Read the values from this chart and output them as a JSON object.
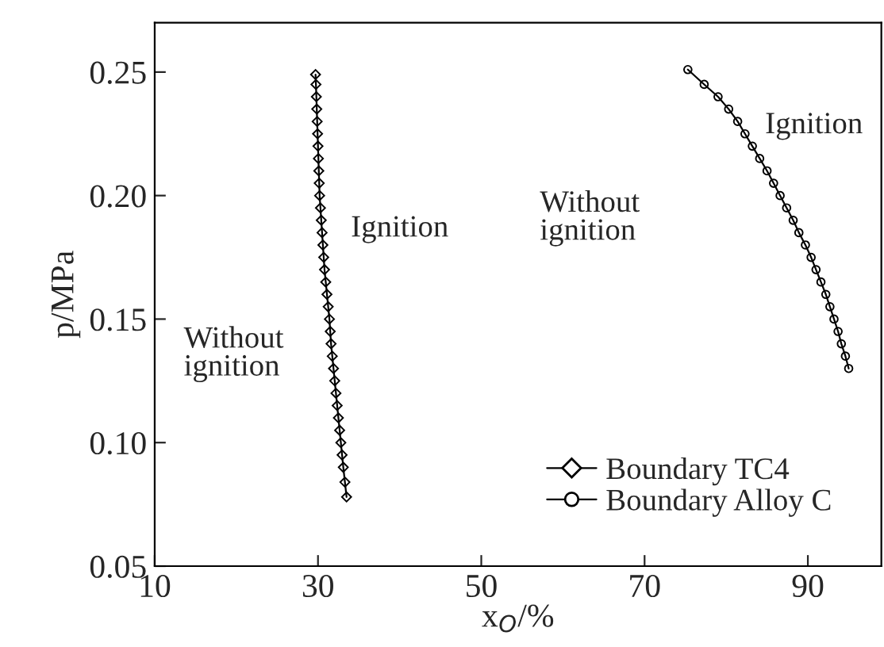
{
  "chart_data": {
    "type": "line",
    "xlabel": "x$_{O}$/%",
    "ylabel": "p/MPa",
    "xlim": [
      10,
      99
    ],
    "xticks": [
      10,
      30,
      50,
      70,
      90
    ],
    "ylim": [
      0.05,
      0.27
    ],
    "yticks": [
      {
        "value": 0.05,
        "label": "0.05"
      },
      {
        "value": 0.1,
        "label": "0.10"
      },
      {
        "value": 0.15,
        "label": "0.15"
      },
      {
        "value": 0.2,
        "label": "0.20"
      },
      {
        "value": 0.25,
        "label": "0.25"
      }
    ],
    "grid": false,
    "legend": "bottom right",
    "line_style": "solid",
    "series": [
      {
        "name": "Boundary TC4",
        "color": "#000000",
        "marker": "diamond",
        "x": [
          29.7,
          29.75,
          29.8,
          29.85,
          29.9,
          29.95,
          30.0,
          30.05,
          30.1,
          30.15,
          30.2,
          30.3,
          30.4,
          30.5,
          30.6,
          30.7,
          30.8,
          30.95,
          31.1,
          31.25,
          31.4,
          31.5,
          31.6,
          31.75,
          31.9,
          32.05,
          32.2,
          32.35,
          32.5,
          32.65,
          32.8,
          32.95,
          33.1,
          33.3,
          33.5
        ],
        "values": [
          0.249,
          0.245,
          0.24,
          0.235,
          0.23,
          0.225,
          0.22,
          0.215,
          0.21,
          0.205,
          0.2,
          0.195,
          0.19,
          0.185,
          0.18,
          0.175,
          0.17,
          0.165,
          0.16,
          0.155,
          0.15,
          0.145,
          0.14,
          0.135,
          0.13,
          0.125,
          0.12,
          0.115,
          0.11,
          0.105,
          0.1,
          0.095,
          0.09,
          0.084,
          0.078
        ]
      },
      {
        "name": "Boundary Alloy C",
        "color": "#000000",
        "marker": "circle",
        "x": [
          75.3,
          77.3,
          79.0,
          80.3,
          81.4,
          82.3,
          83.2,
          84.1,
          85.0,
          85.8,
          86.6,
          87.4,
          88.2,
          88.9,
          89.7,
          90.4,
          91.0,
          91.6,
          92.2,
          92.7,
          93.2,
          93.7,
          94.1,
          94.6,
          95.0
        ],
        "values": [
          0.251,
          0.245,
          0.24,
          0.235,
          0.23,
          0.225,
          0.22,
          0.215,
          0.21,
          0.205,
          0.2,
          0.195,
          0.19,
          0.185,
          0.18,
          0.175,
          0.17,
          0.165,
          0.16,
          0.155,
          0.15,
          0.145,
          0.14,
          0.135,
          0.13
        ]
      }
    ],
    "annotations": [
      "Without\nignition",
      "Ignition",
      "Without\nignition",
      "Ignition"
    ]
  }
}
